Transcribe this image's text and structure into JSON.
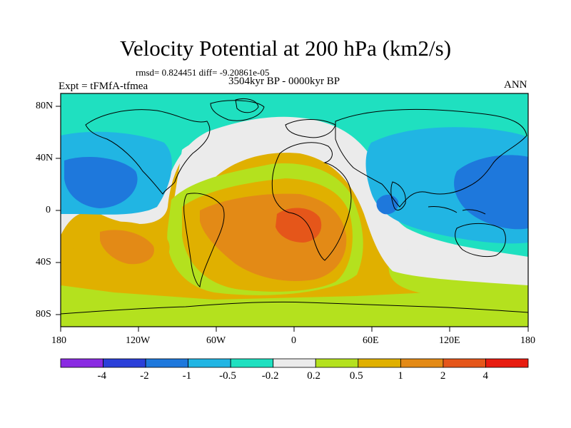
{
  "title": "Velocity Potential at 200 hPa (km2/s)",
  "stats": "rmsd= 0.824451 diff= -9.20861e-05",
  "period": "3504kyr BP - 0000kyr BP",
  "experiment": "Expt = tFMfA-tfmea",
  "season": "ANN",
  "map": {
    "lat_labels": [
      "80N",
      "40N",
      "0",
      "40S",
      "80S"
    ],
    "lon_labels": [
      "180",
      "120W",
      "60W",
      "0",
      "60E",
      "120E",
      "180"
    ]
  },
  "colorbar": {
    "labels": [
      "-4",
      "-2",
      "-1",
      "-0.5",
      "-0.2",
      "0.2",
      "0.5",
      "1",
      "2",
      "4"
    ],
    "colors": [
      "#8a2be2",
      "#2b3fd9",
      "#1e78dc",
      "#21b5e3",
      "#1fe0c0",
      "#ebebeb",
      "#b4e11e",
      "#e0b000",
      "#e38a16",
      "#e5561a",
      "#e81c10"
    ]
  }
}
